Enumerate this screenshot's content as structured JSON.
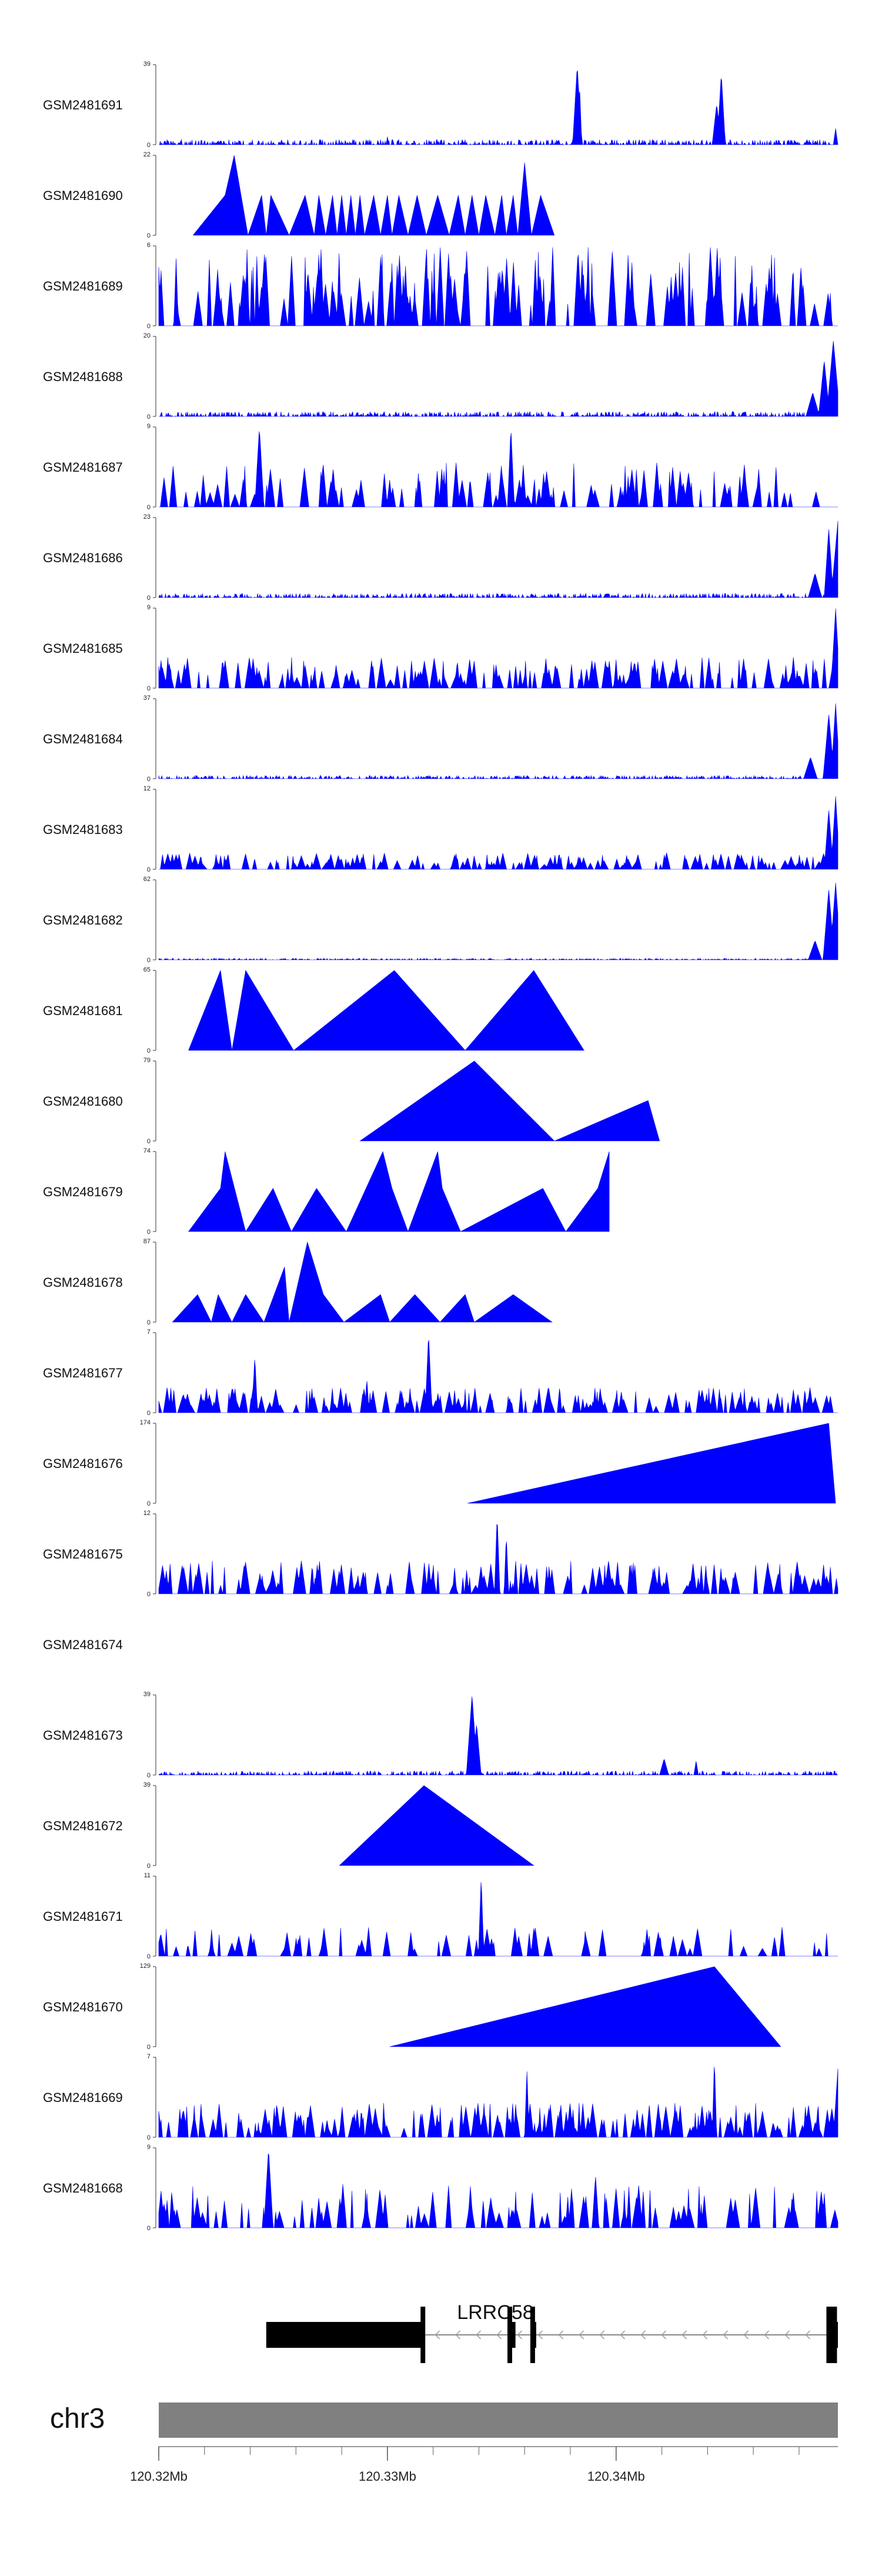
{
  "chart_data": {
    "type": "area",
    "title": "",
    "genome": "chr3",
    "fill_color": "#0000ff",
    "axis_color": "#555555",
    "xlim_mb": [
      120.32,
      120.3497
    ],
    "tracks": [
      {
        "sample": "GSM2481691",
        "ymax_label": "39",
        "ymin_label": "0",
        "style": "dense",
        "peaks": [
          {
            "x": 120.33,
            "y": 4,
            "w": 6e-05
          },
          {
            "x": 120.3383,
            "y": 39,
            "w": 0.0002
          },
          {
            "x": 120.3384,
            "y": 30,
            "w": 0.0001
          },
          {
            "x": 120.3446,
            "y": 35,
            "w": 0.00018
          },
          {
            "x": 120.3444,
            "y": 20,
            "w": 0.0002
          },
          {
            "x": 120.3496,
            "y": 8,
            "w": 0.0001
          }
        ],
        "noise": 2.5
      },
      {
        "sample": "GSM2481690",
        "ymax_label": "22",
        "ymin_label": "0",
        "style": "triangles",
        "pts": [
          [
            120.3215,
            0
          ],
          [
            120.3229,
            11
          ],
          [
            120.3233,
            22
          ],
          [
            120.3236,
            11
          ],
          [
            120.3239,
            0
          ],
          [
            120.3245,
            11
          ],
          [
            120.3247,
            0
          ],
          [
            120.3249,
            11
          ],
          [
            120.3257,
            0
          ],
          [
            120.3264,
            11
          ],
          [
            120.3268,
            0
          ],
          [
            120.327,
            11
          ],
          [
            120.3273,
            0
          ],
          [
            120.3276,
            11
          ],
          [
            120.3278,
            0
          ],
          [
            120.328,
            11
          ],
          [
            120.3282,
            0
          ],
          [
            120.3284,
            11
          ],
          [
            120.3286,
            0
          ],
          [
            120.3288,
            11
          ],
          [
            120.329,
            0
          ],
          [
            120.3294,
            11
          ],
          [
            120.3297,
            0
          ],
          [
            120.33,
            11
          ],
          [
            120.3302,
            0
          ],
          [
            120.3305,
            11
          ],
          [
            120.3309,
            0
          ],
          [
            120.3313,
            11
          ],
          [
            120.3317,
            0
          ],
          [
            120.3322,
            11
          ],
          [
            120.3327,
            0
          ],
          [
            120.3331,
            11
          ],
          [
            120.3334,
            0
          ],
          [
            120.3337,
            11
          ],
          [
            120.334,
            0
          ],
          [
            120.3343,
            11
          ],
          [
            120.3347,
            0
          ],
          [
            120.335,
            11
          ],
          [
            120.3352,
            0
          ],
          [
            120.3355,
            11
          ],
          [
            120.3357,
            0
          ],
          [
            120.336,
            20
          ],
          [
            120.3363,
            0
          ],
          [
            120.3367,
            11
          ],
          [
            120.3373,
            0
          ]
        ],
        "noise": 0
      },
      {
        "sample": "GSM2481689",
        "ymax_label": "6",
        "ymin_label": "0",
        "style": "spiky",
        "density": 150,
        "max": 6,
        "noise": 0
      },
      {
        "sample": "GSM2481688",
        "ymax_label": "20",
        "ymin_label": "0",
        "style": "dense",
        "peaks": [
          {
            "x": 120.3491,
            "y": 14,
            "w": 0.00025
          },
          {
            "x": 120.3495,
            "y": 19,
            "w": 0.0003
          },
          {
            "x": 120.3486,
            "y": 6,
            "w": 0.0003
          }
        ],
        "noise": 1.2
      },
      {
        "sample": "GSM2481687",
        "ymax_label": "9",
        "ymin_label": "0",
        "style": "spiky",
        "density": 110,
        "max": 5,
        "noise": 0,
        "peaks": [
          {
            "x": 120.3244,
            "y": 9,
            "w": 0.0002
          },
          {
            "x": 120.3354,
            "y": 9,
            "w": 0.00015
          }
        ]
      },
      {
        "sample": "GSM2481686",
        "ymax_label": "23",
        "ymin_label": "0",
        "style": "dense",
        "peaks": [
          {
            "x": 120.3493,
            "y": 20,
            "w": 0.0002
          },
          {
            "x": 120.3497,
            "y": 22,
            "w": 0.0003
          },
          {
            "x": 120.3487,
            "y": 7,
            "w": 0.0003
          }
        ],
        "noise": 1.2
      },
      {
        "sample": "GSM2481685",
        "ymax_label": "9",
        "ymin_label": "0",
        "style": "spiky",
        "density": 160,
        "max": 3.5,
        "noise": 0,
        "peaks": [
          {
            "x": 120.3496,
            "y": 9,
            "w": 0.0002
          }
        ]
      },
      {
        "sample": "GSM2481684",
        "ymax_label": "37",
        "ymin_label": "0",
        "style": "dense",
        "peaks": [
          {
            "x": 120.3493,
            "y": 30,
            "w": 0.00025
          },
          {
            "x": 120.3496,
            "y": 35,
            "w": 0.0002
          },
          {
            "x": 120.3485,
            "y": 10,
            "w": 0.0003
          }
        ],
        "noise": 1.5
      },
      {
        "sample": "GSM2481683",
        "ymax_label": "12",
        "ymin_label": "0",
        "style": "spiky",
        "density": 170,
        "max": 2.5,
        "noise": 0,
        "peaks": [
          {
            "x": 120.3493,
            "y": 9,
            "w": 0.0002
          },
          {
            "x": 120.3496,
            "y": 11,
            "w": 0.0002
          }
        ]
      },
      {
        "sample": "GSM2481682",
        "ymax_label": "62",
        "ymin_label": "0",
        "style": "dense",
        "peaks": [
          {
            "x": 120.3493,
            "y": 55,
            "w": 0.00025
          },
          {
            "x": 120.3496,
            "y": 60,
            "w": 0.00025
          },
          {
            "x": 120.3487,
            "y": 15,
            "w": 0.0003
          }
        ],
        "noise": 1.2
      },
      {
        "sample": "GSM2481681",
        "ymax_label": "65",
        "ymin_label": "0",
        "style": "triangles",
        "pts": [
          [
            120.3213,
            0
          ],
          [
            120.3227,
            65
          ],
          [
            120.3232,
            0
          ],
          [
            120.3238,
            65
          ],
          [
            120.3259,
            0
          ],
          [
            120.3303,
            65
          ],
          [
            120.3334,
            0
          ],
          [
            120.3364,
            65
          ],
          [
            120.3386,
            0
          ]
        ]
      },
      {
        "sample": "GSM2481680",
        "ymax_label": "79",
        "ymin_label": "0",
        "style": "triangles",
        "pts": [
          [
            120.3288,
            0
          ],
          [
            120.3338,
            79
          ],
          [
            120.3373,
            0
          ],
          [
            120.3414,
            40
          ],
          [
            120.3419,
            0
          ]
        ]
      },
      {
        "sample": "GSM2481679",
        "ymax_label": "74",
        "ymin_label": "0",
        "style": "triangles",
        "pts": [
          [
            120.3213,
            0
          ],
          [
            120.3227,
            40
          ],
          [
            120.3229,
            74
          ],
          [
            120.3238,
            0
          ],
          [
            120.325,
            40
          ],
          [
            120.3258,
            0
          ],
          [
            120.3269,
            40
          ],
          [
            120.3282,
            0
          ],
          [
            120.3298,
            74
          ],
          [
            120.3302,
            40
          ],
          [
            120.3309,
            0
          ],
          [
            120.3322,
            74
          ],
          [
            120.3324,
            40
          ],
          [
            120.3332,
            0
          ],
          [
            120.3368,
            40
          ],
          [
            120.3378,
            0
          ],
          [
            120.3392,
            40
          ],
          [
            120.3397,
            74
          ],
          [
            120.3397,
            0
          ]
        ]
      },
      {
        "sample": "GSM2481678",
        "ymax_label": "87",
        "ymin_label": "0",
        "style": "triangles",
        "pts": [
          [
            120.3206,
            0
          ],
          [
            120.3217,
            30
          ],
          [
            120.3223,
            0
          ],
          [
            120.3226,
            30
          ],
          [
            120.3232,
            0
          ],
          [
            120.3238,
            30
          ],
          [
            120.3246,
            0
          ],
          [
            120.3255,
            60
          ],
          [
            120.3257,
            0
          ],
          [
            120.3265,
            87
          ],
          [
            120.3272,
            30
          ],
          [
            120.3281,
            0
          ],
          [
            120.3297,
            30
          ],
          [
            120.3301,
            0
          ],
          [
            120.3312,
            30
          ],
          [
            120.3323,
            0
          ],
          [
            120.3334,
            30
          ],
          [
            120.3338,
            0
          ],
          [
            120.3355,
            30
          ],
          [
            120.3372,
            0
          ]
        ]
      },
      {
        "sample": "GSM2481677",
        "ymax_label": "7",
        "ymin_label": "0",
        "style": "spiky",
        "density": 170,
        "max": 2.2,
        "noise": 0,
        "peaks": [
          {
            "x": 120.3242,
            "y": 5,
            "w": 0.00012
          },
          {
            "x": 120.3318,
            "y": 7,
            "w": 0.00015
          },
          {
            "x": 120.3291,
            "y": 3,
            "w": 0.0001
          }
        ]
      },
      {
        "sample": "GSM2481676",
        "ymax_label": "174",
        "ymin_label": "0",
        "style": "triangles",
        "pts": [
          [
            120.3335,
            0
          ],
          [
            120.3493,
            174
          ],
          [
            120.3496,
            0
          ]
        ]
      },
      {
        "sample": "GSM2481675",
        "ymax_label": "12",
        "ymin_label": "0",
        "style": "spiky",
        "density": 150,
        "max": 5,
        "noise": 0,
        "peaks": [
          {
            "x": 120.3348,
            "y": 12,
            "w": 0.00012
          },
          {
            "x": 120.3352,
            "y": 9,
            "w": 0.0001
          }
        ]
      },
      {
        "sample": "GSM2481674",
        "ymax_label": "",
        "ymin_label": "",
        "style": "empty"
      },
      {
        "sample": "GSM2481673",
        "ymax_label": "39",
        "ymin_label": "0",
        "style": "dense",
        "peaks": [
          {
            "x": 120.3337,
            "y": 39,
            "w": 0.00025
          },
          {
            "x": 120.3339,
            "y": 25,
            "w": 0.0002
          },
          {
            "x": 120.3421,
            "y": 8,
            "w": 0.0002
          },
          {
            "x": 120.3435,
            "y": 7,
            "w": 0.0001
          }
        ],
        "noise": 2.0
      },
      {
        "sample": "GSM2481672",
        "ymax_label": "39",
        "ymin_label": "0",
        "style": "triangles",
        "pts": [
          [
            120.3279,
            0
          ],
          [
            120.3316,
            39
          ],
          [
            120.3364,
            0
          ]
        ]
      },
      {
        "sample": "GSM2481671",
        "ymax_label": "11",
        "ymin_label": "0",
        "style": "spiky",
        "density": 70,
        "max": 4,
        "noise": 0,
        "peaks": [
          {
            "x": 120.3341,
            "y": 11,
            "w": 0.00012
          }
        ]
      },
      {
        "sample": "GSM2481670",
        "ymax_label": "129",
        "ymin_label": "0",
        "style": "triangles",
        "pts": [
          [
            120.3301,
            0
          ],
          [
            120.3443,
            129
          ],
          [
            120.3472,
            0
          ]
        ]
      },
      {
        "sample": "GSM2481669",
        "ymax_label": "7",
        "ymin_label": "0",
        "style": "spiky",
        "density": 200,
        "max": 3,
        "noise": 0,
        "peaks": [
          {
            "x": 120.3361,
            "y": 6,
            "w": 0.0001
          },
          {
            "x": 120.3443,
            "y": 7,
            "w": 0.0001
          },
          {
            "x": 120.3497,
            "y": 6,
            "w": 0.0002
          }
        ]
      },
      {
        "sample": "GSM2481668",
        "ymax_label": "9",
        "ymin_label": "0",
        "style": "spiky",
        "density": 110,
        "max": 5,
        "noise": 0,
        "peaks": [
          {
            "x": 120.3248,
            "y": 9,
            "w": 0.0002
          },
          {
            "x": 120.3391,
            "y": 6,
            "w": 0.00015
          }
        ]
      }
    ],
    "gene": {
      "name": "LRRC58",
      "strand": "-",
      "exons": [
        {
          "start": 120.3247,
          "end": 120.3315,
          "thick": true
        },
        {
          "start": 120.3353,
          "end": 120.3356,
          "thick": true
        },
        {
          "start": 120.3363,
          "end": 120.3365,
          "thick": true
        },
        {
          "start": 120.3493,
          "end": 120.3497,
          "thick": true
        }
      ],
      "intron": {
        "start": 120.3315,
        "end": 120.3493
      }
    },
    "ideogram": {
      "chromosome": "chr3"
    },
    "x_axis": {
      "ticks": [
        120.32,
        120.33,
        120.34
      ],
      "tick_labels": [
        "120.32Mb",
        "120.33Mb",
        "120.34Mb"
      ],
      "minor_step": 0.002
    }
  }
}
